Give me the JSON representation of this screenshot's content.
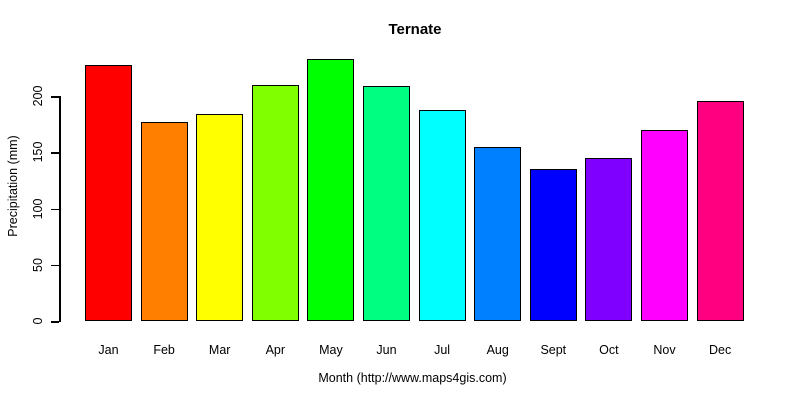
{
  "chart_data": {
    "type": "bar",
    "title": "Ternate",
    "xlabel": "Month (http://www.maps4gis.com)",
    "ylabel": "Precipitation (mm)",
    "categories": [
      "Jan",
      "Feb",
      "Mar",
      "Apr",
      "May",
      "Jun",
      "Jul",
      "Aug",
      "Sept",
      "Oct",
      "Nov",
      "Dec"
    ],
    "values": [
      228,
      177,
      184,
      210,
      233,
      209,
      188,
      155,
      135,
      145,
      170,
      196
    ],
    "bar_colors": [
      "#FF0000",
      "#FF8000",
      "#FFFF00",
      "#80FF00",
      "#00FF00",
      "#00FF80",
      "#00FFFF",
      "#0080FF",
      "#0000FF",
      "#8000FF",
      "#FF00FF",
      "#FF0080"
    ],
    "yticks": [
      0,
      50,
      100,
      150,
      200
    ],
    "ylim": [
      0,
      240
    ],
    "grid": false,
    "legend": "none",
    "bar_border_color": "#000000",
    "background_color": "#FFFFFF",
    "text_color": "#000000"
  }
}
